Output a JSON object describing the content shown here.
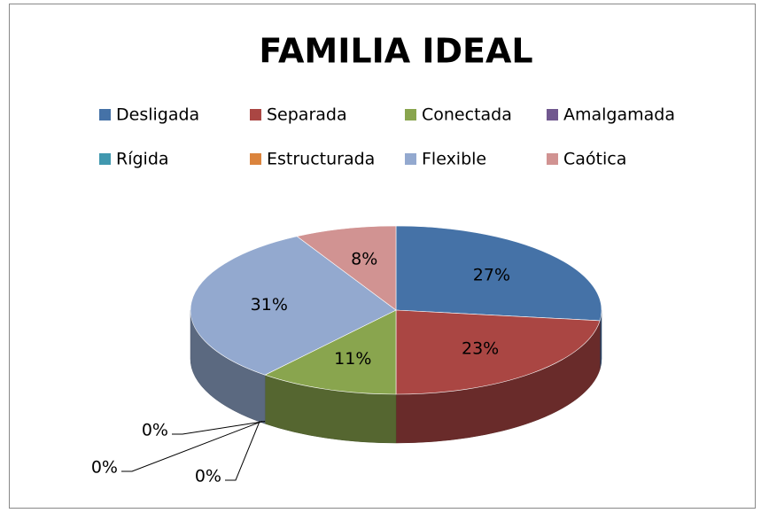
{
  "chart_data": {
    "type": "pie3d",
    "title": "FAMILIA IDEAL",
    "categories": [
      "Desligada",
      "Separada",
      "Conectada",
      "Amalgamada",
      "Rígida",
      "Estructurada",
      "Flexible",
      "Caótica"
    ],
    "values": [
      27,
      23,
      11,
      0,
      0,
      0,
      31,
      8
    ],
    "value_labels": [
      "27%",
      "23%",
      "11%",
      "0%",
      "0%",
      "0%",
      "31%",
      "8%"
    ],
    "colors": [
      "#4572a7",
      "#aa4643",
      "#89a54e",
      "#71588f",
      "#4198af",
      "#db843d",
      "#93a9cf",
      "#d19392"
    ],
    "legend": "top"
  }
}
